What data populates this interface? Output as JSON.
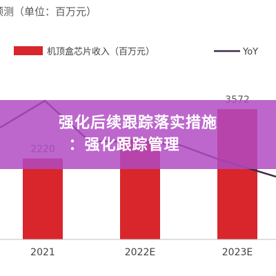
{
  "colors": {
    "bar": "#d9262c",
    "line": "#3b2a4a",
    "banner": "#b04ac4",
    "label": "#595959"
  },
  "chart_data": {
    "type": "bar",
    "title": "预测（单位：百万元）",
    "xlabel": "",
    "ylabel": "",
    "categories": [
      "2021",
      "2022E",
      "2023E"
    ],
    "series": [
      {
        "name": "机顶盒芯片收入（百万元）",
        "type": "bar",
        "values": [
          2220,
          2750,
          3572
        ]
      },
      {
        "name": "YoY",
        "type": "line",
        "values": [
          null,
          null,
          null
        ]
      }
    ],
    "data_labels": [
      "2220",
      "",
      "3572"
    ],
    "ylim": [
      0,
      4200
    ],
    "grid": false,
    "legend": "top"
  },
  "overlay": {
    "line1": "强化后续跟踪落实措施",
    "line2": "：强化跟踪管理"
  }
}
